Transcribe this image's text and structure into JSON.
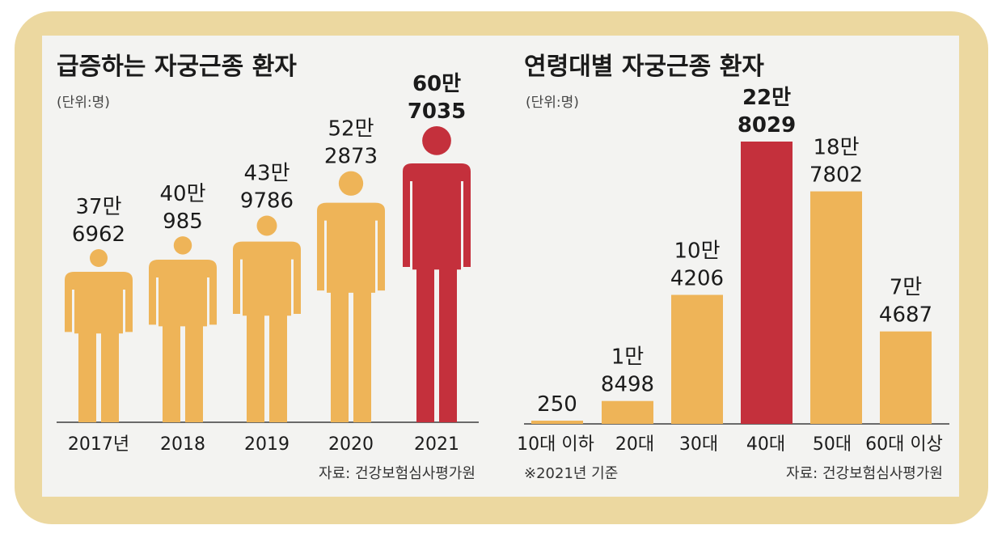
{
  "colors": {
    "frame": "#ecd8a0",
    "panel": "#f3f3f1",
    "bar": "#eeb458",
    "highlight": "#c4303c",
    "baseline": "#6a6a6a"
  },
  "left": {
    "title": "급증하는 자궁근종 환자",
    "unit": "(단위:명)",
    "source": "자료: 건강보험심사평가원"
  },
  "right": {
    "title": "연령대별 자궁근종 환자",
    "unit": "(단위:명)",
    "note": "※2021년 기준",
    "source": "자료: 건강보험심사평가원"
  },
  "chart_data": [
    {
      "type": "bar",
      "title": "급증하는 자궁근종 환자",
      "unit": "(단위:명)",
      "mark": "person-pictogram",
      "categories": [
        "2017년",
        "2018",
        "2019",
        "2020",
        "2021"
      ],
      "values": [
        376962,
        400985,
        439786,
        522873,
        607035
      ],
      "labels": [
        [
          "37만",
          "6962"
        ],
        [
          "40만",
          "985"
        ],
        [
          "43만",
          "9786"
        ],
        [
          "52만",
          "2873"
        ],
        [
          "60만",
          "7035"
        ]
      ],
      "highlight_index": 4
    },
    {
      "type": "bar",
      "title": "연령대별 자궁근종 환자",
      "unit": "(단위:명)",
      "categories": [
        "10대 이하",
        "20대",
        "30대",
        "40대",
        "50대",
        "60대 이상"
      ],
      "values": [
        250,
        18498,
        104206,
        228029,
        187802,
        74687
      ],
      "labels": [
        [
          "250"
        ],
        [
          "1만",
          "8498"
        ],
        [
          "10만",
          "4206"
        ],
        [
          "22만",
          "8029"
        ],
        [
          "18만",
          "7802"
        ],
        [
          "7만",
          "4687"
        ]
      ],
      "highlight_index": 3,
      "note": "※2021년 기준"
    }
  ]
}
